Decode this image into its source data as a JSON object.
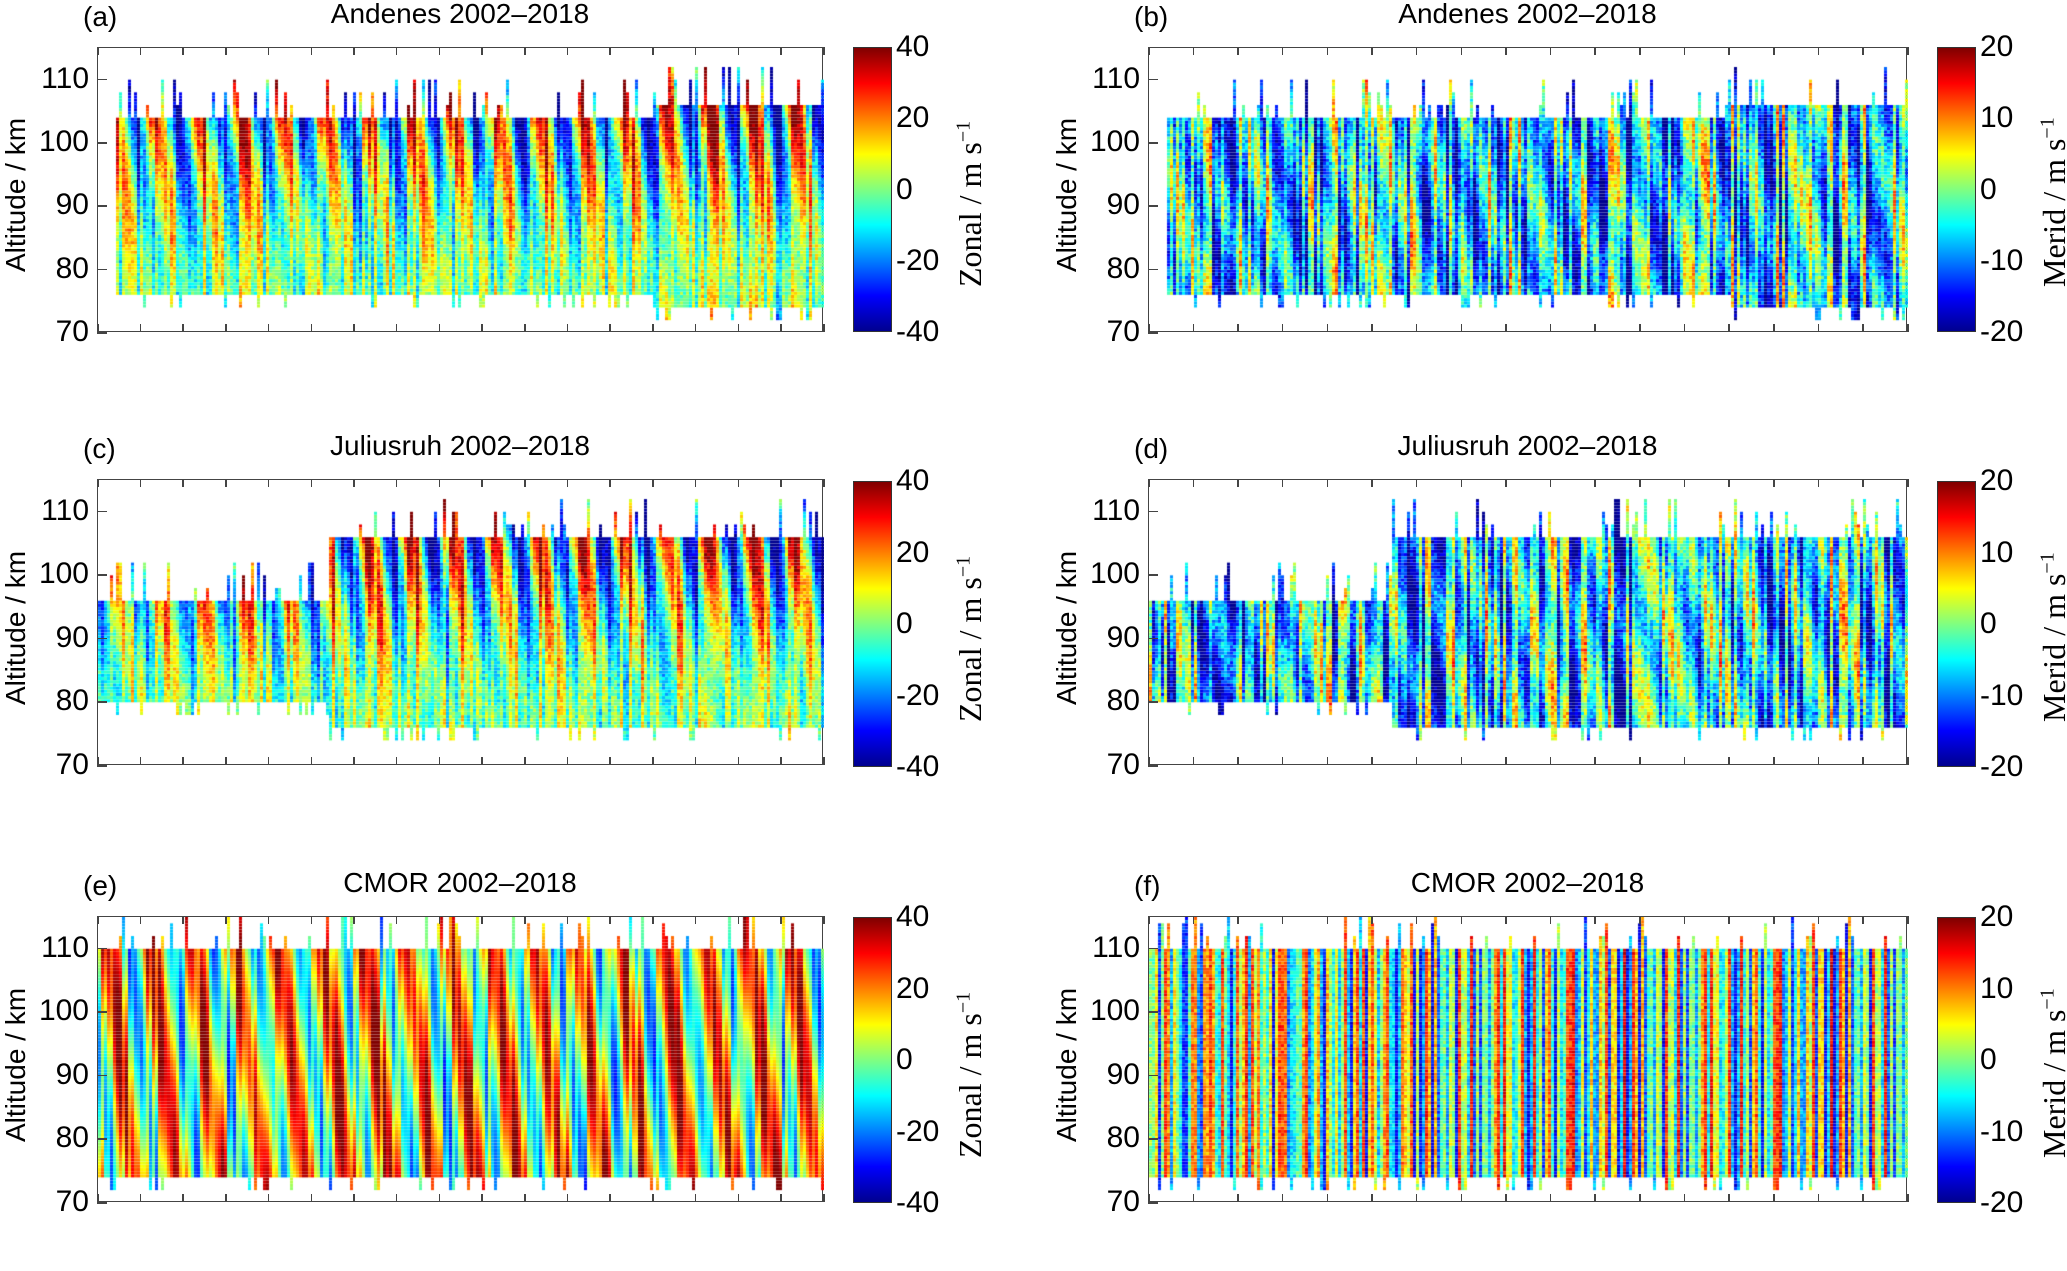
{
  "chart_data": [
    {
      "id": "a",
      "type": "heatmap",
      "letter": "(a)",
      "title": "Andenes 2002–2018",
      "xlabel": "",
      "ylabel": "Altitude / km",
      "xlim": [
        2002,
        2019
      ],
      "ylim": [
        70,
        115
      ],
      "xticks": [
        "2002",
        "2003",
        "2004",
        "2005",
        "2006",
        "2007",
        "2008",
        "2009",
        "2010",
        "2011",
        "2012",
        "2013",
        "2014",
        "2015",
        "2016",
        "2017",
        "2018",
        "2019"
      ],
      "yticks": [
        "70",
        "80",
        "90",
        "100",
        "110"
      ],
      "colorbar": {
        "label": "Zonal / m s",
        "label_sup": "−1",
        "range": [
          -40,
          40
        ],
        "ticks": [
          "40",
          "20",
          "0",
          "-20",
          "-40"
        ]
      },
      "field": "zonal",
      "variant": "andenes",
      "coverage_km": [
        [
          2002.4,
          2015.0,
          76,
          104
        ],
        [
          2015.0,
          2019.0,
          74,
          106
        ]
      ],
      "colormap": "jet"
    },
    {
      "id": "b",
      "type": "heatmap",
      "letter": "(b)",
      "title": "Andenes 2002–2018",
      "xlabel": "",
      "ylabel": "Altitude / km",
      "xlim": [
        2002,
        2019
      ],
      "ylim": [
        70,
        115
      ],
      "xticks": [
        "2002",
        "2003",
        "2004",
        "2005",
        "2006",
        "2007",
        "2008",
        "2009",
        "2010",
        "2011",
        "2012",
        "2013",
        "2014",
        "2015",
        "2016",
        "2017",
        "2018",
        "2019"
      ],
      "yticks": [
        "70",
        "80",
        "90",
        "100",
        "110"
      ],
      "colorbar": {
        "label": "Merid / m s",
        "label_sup": "−1",
        "range": [
          -20,
          20
        ],
        "ticks": [
          "20",
          "10",
          "0",
          "-10",
          "-20"
        ]
      },
      "field": "meridional",
      "variant": "andenes",
      "coverage_km": [
        [
          2002.4,
          2015.0,
          76,
          104
        ],
        [
          2015.0,
          2019.0,
          74,
          106
        ]
      ],
      "colormap": "jet"
    },
    {
      "id": "c",
      "type": "heatmap",
      "letter": "(c)",
      "title": "Juliusruh 2002–2018",
      "xlabel": "",
      "ylabel": "Altitude / km",
      "xlim": [
        2002,
        2019
      ],
      "ylim": [
        70,
        115
      ],
      "xticks": [
        "2002",
        "2003",
        "2004",
        "2005",
        "2006",
        "2007",
        "2008",
        "2009",
        "2010",
        "2011",
        "2012",
        "2013",
        "2014",
        "2015",
        "2016",
        "2017",
        "2018",
        "2019"
      ],
      "yticks": [
        "70",
        "80",
        "90",
        "100",
        "110"
      ],
      "colorbar": {
        "label": "Zonal / m s",
        "label_sup": "−1",
        "range": [
          -40,
          40
        ],
        "ticks": [
          "40",
          "20",
          "0",
          "-20",
          "-40"
        ]
      },
      "field": "zonal",
      "variant": "juliusruh",
      "coverage_km": [
        [
          2002.0,
          2007.4,
          80,
          96
        ],
        [
          2007.4,
          2019.0,
          76,
          106
        ]
      ],
      "colormap": "jet"
    },
    {
      "id": "d",
      "type": "heatmap",
      "letter": "(d)",
      "title": "Juliusruh 2002–2018",
      "xlabel": "",
      "ylabel": "Altitude / km",
      "xlim": [
        2002,
        2019
      ],
      "ylim": [
        70,
        115
      ],
      "xticks": [
        "2002",
        "2003",
        "2004",
        "2005",
        "2006",
        "2007",
        "2008",
        "2009",
        "2010",
        "2011",
        "2012",
        "2013",
        "2014",
        "2015",
        "2016",
        "2017",
        "2018",
        "2019"
      ],
      "yticks": [
        "70",
        "80",
        "90",
        "100",
        "110"
      ],
      "colorbar": {
        "label": "Merid / m s",
        "label_sup": "−1",
        "range": [
          -20,
          20
        ],
        "ticks": [
          "20",
          "10",
          "0",
          "-10",
          "-20"
        ]
      },
      "field": "meridional",
      "variant": "juliusruh",
      "coverage_km": [
        [
          2002.0,
          2007.4,
          80,
          96
        ],
        [
          2007.4,
          2019.0,
          76,
          106
        ]
      ],
      "colormap": "jet"
    },
    {
      "id": "e",
      "type": "heatmap",
      "letter": "(e)",
      "title": "CMOR 2002–2018",
      "xlabel": "",
      "ylabel": "Altitude / km",
      "xlim": [
        2002,
        2019
      ],
      "ylim": [
        70,
        115
      ],
      "xticks": [
        "2002",
        "2003",
        "2004",
        "2005",
        "2006",
        "2007",
        "2008",
        "2009",
        "2010",
        "2011",
        "2012",
        "2013",
        "2014",
        "2015",
        "2016",
        "2017",
        "2018",
        "2019"
      ],
      "yticks": [
        "70",
        "80",
        "90",
        "100",
        "110"
      ],
      "colorbar": {
        "label": "Zonal / m s",
        "label_sup": "−1",
        "range": [
          -40,
          40
        ],
        "ticks": [
          "40",
          "20",
          "0",
          "-20",
          "-40"
        ]
      },
      "field": "zonal",
      "variant": "cmor",
      "coverage_km": [
        [
          2002.0,
          2019.0,
          74,
          110
        ]
      ],
      "colormap": "jet"
    },
    {
      "id": "f",
      "type": "heatmap",
      "letter": "(f)",
      "title": "CMOR 2002–2018",
      "xlabel": "",
      "ylabel": "Altitude / km",
      "xlim": [
        2002,
        2019
      ],
      "ylim": [
        70,
        115
      ],
      "xticks": [
        "2002",
        "2003",
        "2004",
        "2005",
        "2006",
        "2007",
        "2008",
        "2009",
        "2010",
        "2011",
        "2012",
        "2013",
        "2014",
        "2015",
        "2016",
        "2017",
        "2018",
        "2019"
      ],
      "yticks": [
        "70",
        "80",
        "90",
        "100",
        "110"
      ],
      "colorbar": {
        "label": "Merid / m s",
        "label_sup": "−1",
        "range": [
          -20,
          20
        ],
        "ticks": [
          "20",
          "10",
          "0",
          "-10",
          "-20"
        ]
      },
      "field": "meridional",
      "variant": "cmor",
      "coverage_km": [
        [
          2002.0,
          2019.0,
          74,
          110
        ]
      ],
      "colormap": "jet"
    }
  ]
}
